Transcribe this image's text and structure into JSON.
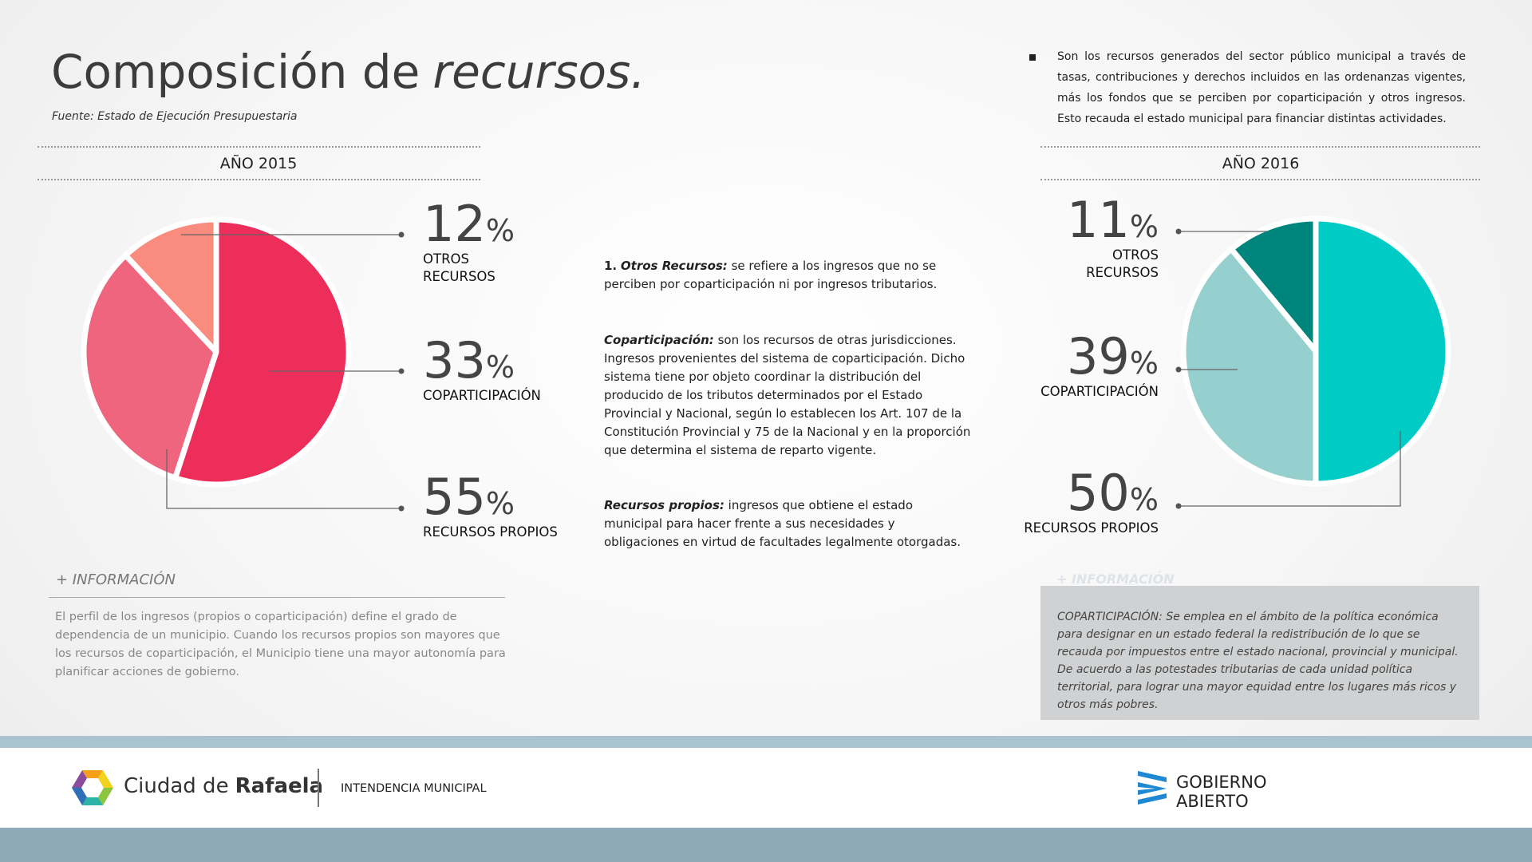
{
  "title": "Composición de",
  "title_emphasis": "recursos.",
  "source": "Fuente: Estado de Ejecución Presupuestaria",
  "description": "Son los recursos generados del sector público municipal a través de tasas, contribuciones y derechos incluidos en las ordenanzas vigentes, más los fondos que se perciben por coparticipación y otros ingresos. Esto recauda el estado municipal para financiar distintas actividades.",
  "chart_data": [
    {
      "type": "pie",
      "title": "AÑO 2015",
      "categories": [
        "OTROS RECURSOS",
        "COPARTICIPACIÓN",
        "RECURSOS PROPIOS"
      ],
      "values": [
        12,
        33,
        55
      ],
      "value_labels": [
        "12%",
        "33%",
        "55%"
      ],
      "colors": [
        "#f98b7f",
        "#f0657e",
        "#ee2e5a"
      ]
    },
    {
      "type": "pie",
      "title": "AÑO 2016",
      "categories": [
        "OTROS RECURSOS",
        "COPARTICIPACIÓN",
        "RECURSOS PROPIOS"
      ],
      "values": [
        11,
        39,
        50
      ],
      "value_labels": [
        "11%",
        "39%",
        "50%"
      ],
      "colors": [
        "#00857c",
        "#95d0ce",
        "#00cbc4"
      ]
    }
  ],
  "notes": [
    {
      "number": "1.",
      "term": "Otros Recursos:",
      "text": "se refiere a los ingresos que no se perciben por coparticipación ni por ingresos tributarios."
    },
    {
      "term": "Coparticipación:",
      "text": "son los recursos de otras jurisdicciones. Ingresos provenientes del sistema de coparticipación. Dicho sistema tiene por objeto coordinar la distribución del producido de los tributos determinados por el Estado Provincial y Nacional, según lo establecen los Art. 107 de la Constitución Provincial y 75 de la Nacional y en la proporción que determina el sistema de reparto vigente."
    },
    {
      "term": "Recursos propios:",
      "text": "ingresos que obtiene el estado municipal para hacer frente a sus necesidades y obligaciones en virtud de facultades legalmente otorgadas."
    }
  ],
  "info_left": {
    "heading": "+ INFORMACIÓN",
    "text": "El perfil de los ingresos (propios o coparticipación) define el grado de dependencia de un municipio. Cuando los recursos propios son mayores que los recursos de coparticipación, el Municipio tiene una mayor autonomía para planificar acciones de gobierno."
  },
  "info_right": {
    "heading": "+ INFORMACIÓN",
    "text": "COPARTICIPACIÓN: Se emplea en el ámbito de la política económica para designar en un estado federal la redistribución de lo que se recauda por impuestos entre el estado nacional, provincial y municipal. De acuerdo a las potestades tributarias de cada unidad política territorial, para lograr una mayor equidad entre los lugares más ricos y otros más pobres."
  },
  "footer": {
    "city": "Ciudad de",
    "city_name": "Rafaela",
    "office": "INTENDENCIA MUNICIPAL",
    "brand_line1": "GOBIERNO",
    "brand_line2": "ABIERTO"
  }
}
